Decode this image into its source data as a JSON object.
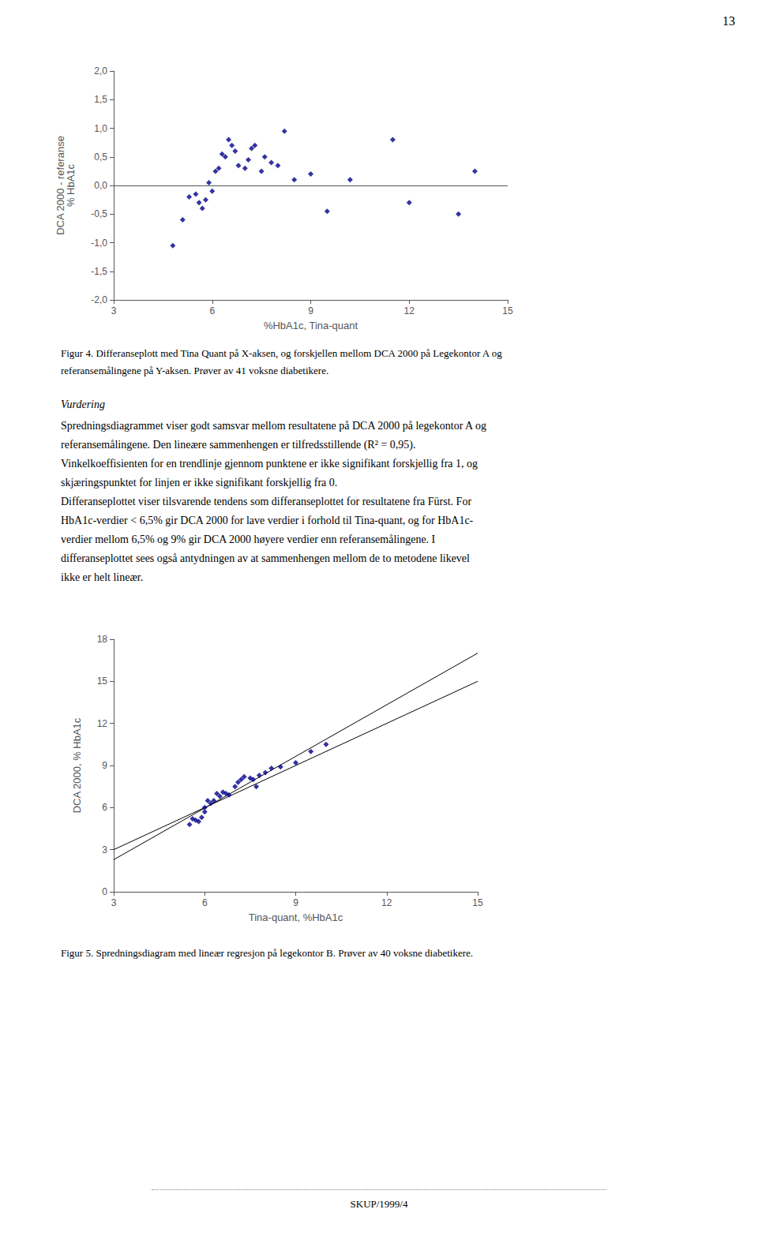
{
  "page_number": "13",
  "chart_data": [
    {
      "type": "scatter",
      "xlabel": "%HbA1c, Tina-quant",
      "ylabel": "DCA 2000 - referanse\n% HbA1c",
      "xlim": [
        3,
        15
      ],
      "ylim": [
        -2.0,
        2.0
      ],
      "xticks": [
        3,
        6,
        9,
        12,
        15
      ],
      "yticks": [
        {
          "value": -2.0,
          "label": "-2,0"
        },
        {
          "value": -1.5,
          "label": "-1,5"
        },
        {
          "value": -1.0,
          "label": "-1,0"
        },
        {
          "value": -0.5,
          "label": "-0,5"
        },
        {
          "value": 0.0,
          "label": "0,0"
        },
        {
          "value": 0.5,
          "label": "0,5"
        },
        {
          "value": 1.0,
          "label": "1,0"
        },
        {
          "value": 1.5,
          "label": "1,5"
        },
        {
          "value": 2.0,
          "label": "2,0"
        }
      ],
      "grid": false,
      "series": [
        {
          "type": "scatter",
          "color": "#00008B",
          "marker": "diamond",
          "x": [
            4.8,
            5.1,
            5.3,
            5.5,
            5.6,
            5.7,
            5.8,
            5.9,
            6.0,
            6.1,
            6.2,
            6.3,
            6.4,
            6.5,
            6.6,
            6.7,
            6.8,
            7.0,
            7.1,
            7.2,
            7.3,
            7.5,
            7.6,
            7.8,
            8.0,
            8.2,
            8.5,
            9.0,
            9.5,
            10.2,
            11.5,
            12.0,
            13.5,
            14.0
          ],
          "values": [
            -1.05,
            -0.6,
            -0.2,
            -0.15,
            -0.3,
            -0.4,
            -0.25,
            0.05,
            -0.1,
            0.25,
            0.3,
            0.55,
            0.5,
            0.8,
            0.7,
            0.6,
            0.35,
            0.3,
            0.45,
            0.65,
            0.7,
            0.25,
            0.5,
            0.4,
            0.35,
            0.95,
            0.1,
            0.2,
            -0.45,
            0.1,
            0.8,
            -0.3,
            -0.5,
            0.25
          ]
        }
      ],
      "reference_line": {
        "y": 0,
        "color": "#555555"
      },
      "caption": [
        "Figur 4. Differanseplott med Tina Quant på X-aksen, og forskjellen mellom DCA 2000 på Legekontor A og",
        "referansemålingene på Y-aksen. Prøver av 41 voksne diabetikere."
      ]
    },
    {
      "type": "scatter",
      "xlabel": "Tina-quant, %HbA1c",
      "ylabel": "DCA 2000, % HbA1c",
      "xlim": [
        3,
        15
      ],
      "ylim": [
        0,
        18
      ],
      "xticks": [
        3,
        6,
        9,
        12,
        15
      ],
      "yticks": [
        0,
        3,
        6,
        9,
        12,
        15,
        18
      ],
      "grid": false,
      "series": [
        {
          "type": "scatter",
          "color": "#00008B",
          "marker": "diamond",
          "x": [
            5.5,
            5.6,
            5.7,
            5.8,
            5.9,
            6.0,
            6.0,
            6.1,
            6.2,
            6.3,
            6.4,
            6.5,
            6.6,
            6.7,
            6.8,
            7.0,
            7.1,
            7.2,
            7.3,
            7.5,
            7.6,
            7.7,
            7.8,
            8.0,
            8.2,
            8.5,
            9.0,
            9.5,
            10.0
          ],
          "values": [
            4.8,
            5.2,
            5.1,
            5.0,
            5.3,
            5.7,
            6.0,
            6.5,
            6.3,
            6.5,
            7.0,
            6.8,
            7.1,
            7.0,
            6.9,
            7.5,
            7.8,
            8.0,
            8.2,
            8.1,
            8.0,
            7.5,
            8.3,
            8.5,
            8.8,
            8.9,
            9.2,
            10.0,
            10.5
          ]
        },
        {
          "type": "line",
          "color": "#000000",
          "x": [
            3,
            15
          ],
          "values": [
            3,
            15
          ]
        },
        {
          "type": "line",
          "color": "#000000",
          "x": [
            3,
            15
          ],
          "values": [
            2.28854,
            17.00843
          ]
        }
      ],
      "caption": [
        "Figur 5. Spredningsdiagram med lineær regresjon på legekontor B. Prøver av 40 voksne diabetikere."
      ]
    }
  ],
  "text_block": {
    "title": "Vurdering",
    "lines": [
      "Spredningsdiagrammet viser godt samsvar mellom resultatene på DCA 2000 på legekontor A og",
      "referansemålingene. Den lineære sammenhengen er tilfredsstillende (R² = 0,95).",
      "Vinkelkoeffisienten for en trendlinje gjennom punktene er ikke signifikant forskjellig fra 1, og",
      "skjæringspunktet for linjen er ikke signifikant forskjellig fra 0.",
      "Differanseplottet viser tilsvarende tendens som differanseplottet for resultatene fra Fürst. For",
      "HbA1c-verdier < 6,5% gir DCA 2000 for lave verdier i forhold til Tina-quant, og for HbA1c-",
      "verdier mellom 6,5% og 9% gir DCA 2000 høyere verdier enn referansemålingene. I",
      "differanseplottet sees også antydningen av at sammenhengen mellom de to metodene likevel",
      "ikke er helt lineær."
    ]
  },
  "footer": "SKUP/1999/4"
}
